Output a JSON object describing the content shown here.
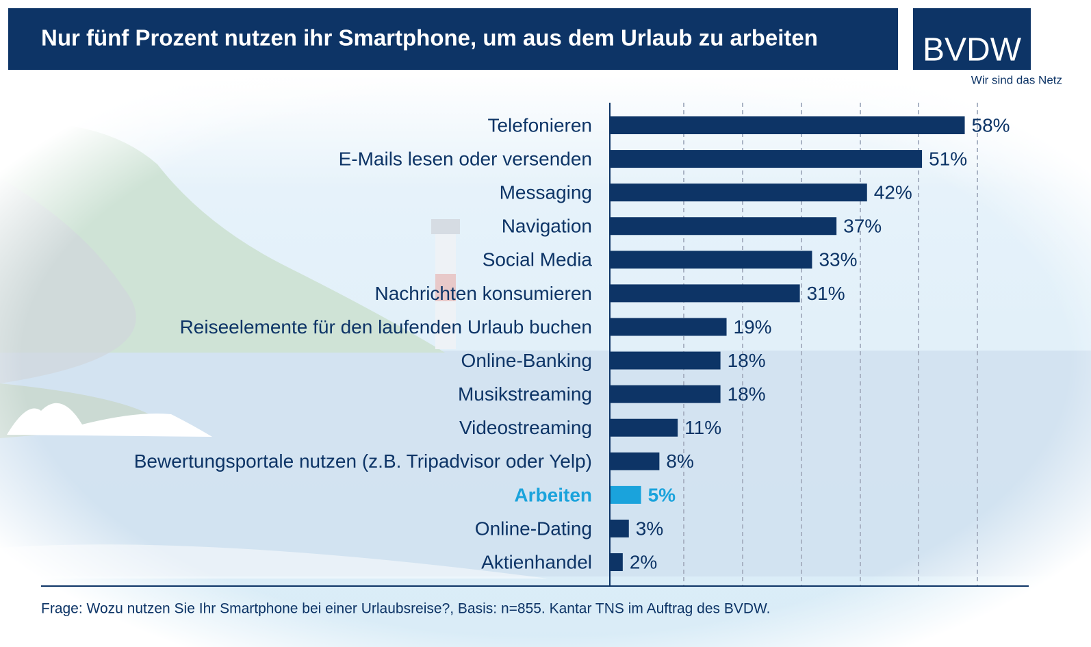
{
  "chart_data": {
    "type": "bar",
    "orientation": "horizontal",
    "title": "Nur fünf Prozent nutzen ihr Smartphone, um aus dem Urlaub zu arbeiten",
    "categories": [
      "Telefonieren",
      "E-Mails lesen oder versenden",
      "Messaging",
      "Navigation",
      "Social Media",
      "Nachrichten konsumieren",
      "Reiseelemente für den laufenden Urlaub buchen",
      "Online-Banking",
      "Musikstreaming",
      "Videostreaming",
      "Bewertungsportale nutzen (z.B. Tripadvisor oder Yelp)",
      "Arbeiten",
      "Online-Dating",
      "Aktienhandel"
    ],
    "values": [
      58,
      51,
      42,
      37,
      33,
      31,
      19,
      18,
      18,
      11,
      8,
      5,
      3,
      2
    ],
    "value_labels": [
      "58%",
      "51%",
      "42%",
      "37%",
      "33%",
      "31%",
      "19%",
      "18%",
      "18%",
      "11%",
      "8%",
      "5%",
      "3%",
      "2%"
    ],
    "colors": [
      "#0d3466",
      "#0d3466",
      "#0d3466",
      "#0d3466",
      "#0d3466",
      "#0d3466",
      "#0d3466",
      "#0d3466",
      "#0d3466",
      "#0d3466",
      "#0d3466",
      "#1aa3dc",
      "#0d3466",
      "#0d3466"
    ],
    "xlim": [
      0,
      65
    ],
    "note": "Frage: Wozu nutzen Sie Ihr Smartphone bei einer Urlaubsreise?, Basis: n=855. Kantar TNS im Auftrag des BVDW."
  },
  "logo": {
    "name": "BVDW",
    "tagline": "Wir sind das Netz"
  }
}
